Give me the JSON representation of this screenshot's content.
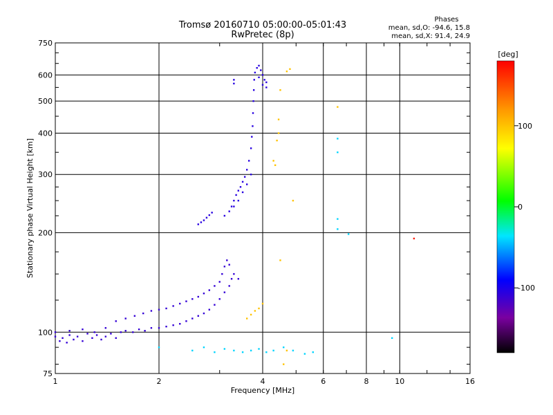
{
  "chart_data": {
    "type": "scatter",
    "title": "Tromsø 20160710 05:00:00-05:01:43",
    "subtitle": "RwPretec (8p)",
    "xlabel": "Frequency [MHz]",
    "ylabel": "Stationary phase Virtual Height [km]",
    "x_scale": "log",
    "y_scale": "log",
    "xlim": [
      1,
      16
    ],
    "ylim": [
      75,
      750
    ],
    "x_ticks": [
      1,
      2,
      4,
      6,
      8,
      10,
      16
    ],
    "x_tick_labels": [
      "1",
      "2",
      "4",
      "6",
      "8",
      "10",
      "16"
    ],
    "x_grid": [
      2,
      4,
      6,
      8,
      10
    ],
    "y_ticks": [
      75,
      100,
      200,
      300,
      400,
      500,
      600,
      750
    ],
    "y_tick_labels": [
      "75",
      "100",
      "200",
      "300",
      "400",
      "500",
      "600",
      "750"
    ],
    "y_grid": [
      100,
      200,
      300,
      400,
      500,
      600
    ],
    "grid": true,
    "stats": {
      "heading": "Phases",
      "line_o": "mean, sd,O: -94.6, 15.8",
      "line_x": "mean, sd,X:  91.4, 24.9"
    },
    "colorbar": {
      "label": "[deg]",
      "range": [
        -180,
        180
      ],
      "ticks": [
        100,
        0,
        -100
      ],
      "tick_labels": [
        "100",
        "0",
        "-100"
      ],
      "colormap": "rainbow (black-purple-blue-cyan-green-yellow-orange-red)"
    },
    "series": [
      {
        "trace": "E-layer O/X traces (blue)",
        "phase": -110,
        "points": [
          [
            1.0,
            97
          ],
          [
            1.03,
            94
          ],
          [
            1.05,
            96
          ],
          [
            1.08,
            93
          ],
          [
            1.1,
            98
          ],
          [
            1.13,
            95
          ],
          [
            1.16,
            97
          ],
          [
            1.2,
            94
          ],
          [
            1.24,
            99
          ],
          [
            1.28,
            96
          ],
          [
            1.32,
            98
          ],
          [
            1.36,
            95
          ],
          [
            1.4,
            97
          ],
          [
            1.45,
            99
          ],
          [
            1.5,
            96
          ],
          [
            1.55,
            100
          ],
          [
            1.6,
            101
          ],
          [
            1.68,
            100
          ],
          [
            1.75,
            102
          ],
          [
            1.82,
            101
          ],
          [
            1.9,
            103
          ],
          [
            2.0,
            103
          ],
          [
            2.1,
            104
          ],
          [
            2.2,
            105
          ],
          [
            2.3,
            106
          ],
          [
            2.4,
            108
          ],
          [
            2.5,
            110
          ],
          [
            2.6,
            112
          ],
          [
            2.7,
            114
          ],
          [
            2.8,
            117
          ],
          [
            2.9,
            121
          ],
          [
            3.0,
            126
          ],
          [
            3.1,
            132
          ],
          [
            3.2,
            138
          ],
          [
            3.25,
            145
          ],
          [
            1.5,
            108
          ],
          [
            1.6,
            110
          ],
          [
            1.7,
            112
          ],
          [
            1.8,
            114
          ],
          [
            1.9,
            116
          ],
          [
            2.0,
            117
          ],
          [
            2.1,
            118
          ],
          [
            2.2,
            120
          ],
          [
            2.3,
            122
          ],
          [
            2.4,
            124
          ],
          [
            2.5,
            126
          ],
          [
            2.6,
            128
          ],
          [
            2.7,
            131
          ],
          [
            2.8,
            134
          ],
          [
            2.9,
            138
          ],
          [
            3.0,
            142
          ],
          [
            3.05,
            150
          ],
          [
            3.1,
            158
          ],
          [
            3.15,
            165
          ],
          [
            3.2,
            160
          ],
          [
            3.3,
            150
          ],
          [
            3.4,
            145
          ],
          [
            1.0,
            100
          ],
          [
            1.1,
            101
          ],
          [
            1.2,
            102
          ],
          [
            1.3,
            100
          ],
          [
            1.4,
            103
          ]
        ]
      },
      {
        "trace": "F-layer trace (blue)",
        "phase": -105,
        "points": [
          [
            2.6,
            212
          ],
          [
            2.65,
            215
          ],
          [
            2.7,
            218
          ],
          [
            2.75,
            222
          ],
          [
            2.8,
            226
          ],
          [
            2.85,
            230
          ],
          [
            3.1,
            225
          ],
          [
            3.2,
            232
          ],
          [
            3.25,
            240
          ],
          [
            3.3,
            250
          ],
          [
            3.35,
            260
          ],
          [
            3.4,
            268
          ],
          [
            3.45,
            275
          ],
          [
            3.5,
            285
          ],
          [
            3.55,
            295
          ],
          [
            3.6,
            310
          ],
          [
            3.65,
            330
          ],
          [
            3.7,
            360
          ],
          [
            3.72,
            390
          ],
          [
            3.74,
            420
          ],
          [
            3.75,
            460
          ],
          [
            3.76,
            500
          ],
          [
            3.77,
            540
          ],
          [
            3.78,
            580
          ],
          [
            3.8,
            610
          ],
          [
            3.85,
            630
          ],
          [
            3.9,
            640
          ],
          [
            3.95,
            620
          ],
          [
            4.0,
            600
          ],
          [
            4.05,
            580
          ],
          [
            4.1,
            570
          ],
          [
            3.9,
            590
          ],
          [
            4.0,
            560
          ],
          [
            4.1,
            550
          ],
          [
            3.3,
            240
          ],
          [
            3.4,
            250
          ],
          [
            3.5,
            265
          ],
          [
            3.6,
            280
          ],
          [
            3.7,
            300
          ],
          [
            3.3,
            580
          ],
          [
            3.3,
            565
          ]
        ]
      },
      {
        "trace": "yellow/orange echoes",
        "phase": 100,
        "points": [
          [
            3.6,
            110
          ],
          [
            3.7,
            113
          ],
          [
            3.8,
            116
          ],
          [
            3.9,
            118
          ],
          [
            4.0,
            122
          ],
          [
            4.3,
            330
          ],
          [
            4.35,
            320
          ],
          [
            4.4,
            380
          ],
          [
            4.45,
            400
          ],
          [
            4.45,
            440
          ],
          [
            4.5,
            540
          ],
          [
            4.7,
            615
          ],
          [
            4.8,
            625
          ],
          [
            4.6,
            80
          ],
          [
            4.7,
            88
          ],
          [
            4.9,
            250
          ],
          [
            4.5,
            165
          ],
          [
            6.6,
            480
          ]
        ]
      },
      {
        "trace": "scattered low echoes",
        "phase": -40,
        "points": [
          [
            2.0,
            90
          ],
          [
            2.5,
            88
          ],
          [
            2.7,
            90
          ],
          [
            2.9,
            87
          ],
          [
            3.1,
            89
          ],
          [
            3.3,
            88
          ],
          [
            3.5,
            87
          ],
          [
            3.7,
            88
          ],
          [
            3.9,
            89
          ],
          [
            4.1,
            87
          ],
          [
            4.3,
            88
          ],
          [
            4.6,
            90
          ],
          [
            4.9,
            88
          ],
          [
            5.3,
            86
          ],
          [
            5.6,
            87
          ],
          [
            9.5,
            96
          ],
          [
            6.6,
            385
          ],
          [
            6.6,
            350
          ],
          [
            6.6,
            220
          ],
          [
            6.6,
            205
          ],
          [
            7.1,
            198
          ]
        ]
      },
      {
        "trace": "red outlier",
        "phase": 170,
        "points": [
          [
            11.0,
            192
          ]
        ]
      }
    ]
  }
}
